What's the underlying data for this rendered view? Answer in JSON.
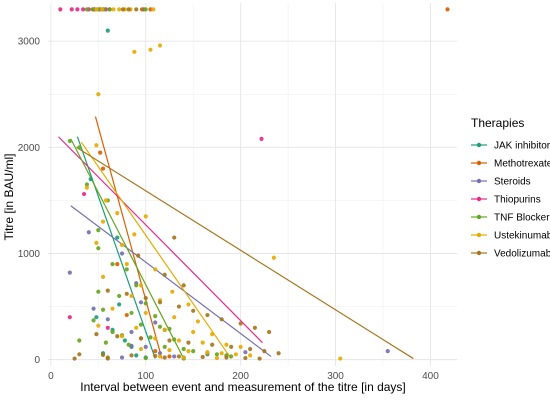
{
  "chart_data": {
    "type": "scatter",
    "xlabel": "Interval between event and measurement of the titre [in days]",
    "ylabel": "Titre [in BAU/ml]",
    "xlim": [
      -3,
      428
    ],
    "ylim": [
      -60,
      3360
    ],
    "x_ticks": [
      0,
      100,
      200,
      300,
      400
    ],
    "y_ticks": [
      0,
      1000,
      2000,
      3000
    ],
    "x_tick_labels": [
      "0",
      "100",
      "200",
      "300",
      "400"
    ],
    "y_tick_labels": [
      "0",
      "1000",
      "2000",
      "3000"
    ],
    "grid": true,
    "legend_position": "right",
    "legend_title": "Therapies",
    "series": [
      {
        "name": "JAK inhibitors",
        "color": "#1b9e77",
        "points": [
          [
            60,
            3100
          ],
          [
            42,
            1700
          ],
          [
            70,
            1150
          ],
          [
            65,
            280
          ],
          [
            78,
            180
          ],
          [
            85,
            120
          ],
          [
            55,
            60
          ],
          [
            90,
            40
          ],
          [
            100,
            20
          ],
          [
            72,
            520
          ],
          [
            48,
            400
          ]
        ],
        "trend": [
          [
            28,
            2100
          ],
          [
            110,
            10
          ]
        ]
      },
      {
        "name": "Methotrexate",
        "color": "#d95f02",
        "points": [
          [
            45,
            3300
          ],
          [
            62,
            3300
          ],
          [
            105,
            3300
          ],
          [
            418,
            3300
          ],
          [
            52,
            1950
          ],
          [
            55,
            1800
          ],
          [
            70,
            900
          ],
          [
            80,
            420
          ],
          [
            95,
            200
          ],
          [
            110,
            80
          ],
          [
            125,
            30
          ]
        ],
        "trend": [
          [
            47,
            2290
          ],
          [
            117,
            10
          ]
        ]
      },
      {
        "name": "Steroids",
        "color": "#7570b3",
        "points": [
          [
            55,
            3300
          ],
          [
            40,
            1200
          ],
          [
            20,
            820
          ],
          [
            75,
            1000
          ],
          [
            90,
            720
          ],
          [
            60,
            380
          ],
          [
            85,
            260
          ],
          [
            100,
            120
          ],
          [
            115,
            60
          ],
          [
            130,
            30
          ],
          [
            140,
            20
          ],
          [
            165,
            50
          ],
          [
            205,
            70
          ],
          [
            355,
            80
          ],
          [
            75,
            20
          ],
          [
            45,
            480
          ],
          [
            110,
            350
          ],
          [
            95,
            540
          ],
          [
            120,
            280
          ],
          [
            85,
            130
          ]
        ],
        "trend": [
          [
            21,
            1450
          ],
          [
            232,
            30
          ]
        ]
      },
      {
        "name": "Thiopurins",
        "color": "#e7298a",
        "points": [
          [
            10,
            3300
          ],
          [
            22,
            3300
          ],
          [
            28,
            3300
          ],
          [
            34,
            3300
          ],
          [
            40,
            3300
          ],
          [
            46,
            3300
          ],
          [
            52,
            3300
          ],
          [
            58,
            3300
          ],
          [
            98,
            3300
          ],
          [
            222,
            2080
          ],
          [
            35,
            1560
          ],
          [
            20,
            400
          ],
          [
            60,
            300
          ]
        ],
        "trend": [
          [
            8,
            2100
          ],
          [
            223,
            160
          ]
        ]
      },
      {
        "name": "TNF Blocker",
        "color": "#66a61e",
        "points": [
          [
            38,
            3300
          ],
          [
            44,
            3300
          ],
          [
            50,
            3300
          ],
          [
            56,
            3300
          ],
          [
            62,
            3300
          ],
          [
            100,
            3300
          ],
          [
            20,
            2060
          ],
          [
            30,
            2000
          ],
          [
            38,
            1650
          ],
          [
            60,
            1500
          ],
          [
            50,
            1220
          ],
          [
            50,
            1050
          ],
          [
            65,
            900
          ],
          [
            80,
            850
          ],
          [
            90,
            700
          ],
          [
            50,
            640
          ],
          [
            72,
            600
          ],
          [
            100,
            530
          ],
          [
            55,
            470
          ],
          [
            85,
            440
          ],
          [
            110,
            410
          ],
          [
            45,
            370
          ],
          [
            95,
            330
          ],
          [
            115,
            310
          ],
          [
            125,
            290
          ],
          [
            65,
            260
          ],
          [
            75,
            230
          ],
          [
            105,
            210
          ],
          [
            130,
            190
          ],
          [
            30,
            180
          ],
          [
            58,
            160
          ],
          [
            82,
            140
          ],
          [
            120,
            120
          ],
          [
            140,
            100
          ],
          [
            150,
            80
          ],
          [
            165,
            60
          ],
          [
            175,
            50
          ],
          [
            185,
            40
          ],
          [
            190,
            30
          ],
          [
            60,
            20
          ],
          [
            100,
            15
          ],
          [
            140,
            10
          ]
        ],
        "trend": [
          [
            21,
            2080
          ],
          [
            140,
            10
          ]
        ]
      },
      {
        "name": "Ustekinumab",
        "color": "#e6ab02",
        "points": [
          [
            48,
            3300
          ],
          [
            54,
            3300
          ],
          [
            66,
            3300
          ],
          [
            72,
            3300
          ],
          [
            78,
            3300
          ],
          [
            84,
            3300
          ],
          [
            108,
            3300
          ],
          [
            88,
            2900
          ],
          [
            115,
            2960
          ],
          [
            50,
            2500
          ],
          [
            105,
            2920
          ],
          [
            48,
            2020
          ],
          [
            38,
            1620
          ],
          [
            58,
            1500
          ],
          [
            70,
            1380
          ],
          [
            100,
            1350
          ],
          [
            55,
            1300
          ],
          [
            88,
            1180
          ],
          [
            48,
            1100
          ],
          [
            75,
            1080
          ],
          [
            235,
            960
          ],
          [
            80,
            900
          ],
          [
            110,
            850
          ],
          [
            55,
            780
          ],
          [
            95,
            700
          ],
          [
            128,
            640
          ],
          [
            85,
            600
          ],
          [
            115,
            560
          ],
          [
            145,
            520
          ],
          [
            65,
            480
          ],
          [
            100,
            440
          ],
          [
            130,
            400
          ],
          [
            155,
            360
          ],
          [
            50,
            320
          ],
          [
            90,
            300
          ],
          [
            120,
            280
          ],
          [
            150,
            260
          ],
          [
            170,
            240
          ],
          [
            75,
            220
          ],
          [
            110,
            200
          ],
          [
            135,
            180
          ],
          [
            160,
            160
          ],
          [
            185,
            140
          ],
          [
            200,
            120
          ],
          [
            95,
            100
          ],
          [
            125,
            90
          ],
          [
            145,
            80
          ],
          [
            165,
            70
          ],
          [
            180,
            60
          ],
          [
            195,
            50
          ],
          [
            210,
            40
          ],
          [
            305,
            10
          ],
          [
            115,
            30
          ],
          [
            140,
            20
          ],
          [
            175,
            15
          ]
        ],
        "trend": [
          [
            32,
            2050
          ],
          [
            190,
            10
          ]
        ]
      },
      {
        "name": "Vedolizumab",
        "color": "#a6761d",
        "points": [
          [
            76,
            3300
          ],
          [
            82,
            3300
          ],
          [
            90,
            3300
          ],
          [
            96,
            3300
          ],
          [
            130,
            1150
          ],
          [
            92,
            980
          ],
          [
            120,
            800
          ],
          [
            140,
            700
          ],
          [
            60,
            650
          ],
          [
            80,
            620
          ],
          [
            100,
            580
          ],
          [
            115,
            540
          ],
          [
            135,
            500
          ],
          [
            150,
            460
          ],
          [
            165,
            420
          ],
          [
            180,
            380
          ],
          [
            200,
            340
          ],
          [
            215,
            300
          ],
          [
            230,
            260
          ],
          [
            48,
            240
          ],
          [
            70,
            220
          ],
          [
            95,
            200
          ],
          [
            125,
            180
          ],
          [
            145,
            160
          ],
          [
            170,
            140
          ],
          [
            190,
            120
          ],
          [
            210,
            100
          ],
          [
            225,
            80
          ],
          [
            240,
            60
          ],
          [
            30,
            50
          ],
          [
            55,
            45
          ],
          [
            85,
            40
          ],
          [
            110,
            35
          ],
          [
            135,
            30
          ],
          [
            160,
            25
          ],
          [
            185,
            20
          ],
          [
            205,
            15
          ],
          [
            220,
            10
          ],
          [
            25,
            10
          ],
          [
            120,
            20
          ],
          [
            60,
            10
          ]
        ],
        "trend": [
          [
            27,
            2000
          ],
          [
            382,
            10
          ]
        ]
      }
    ]
  }
}
